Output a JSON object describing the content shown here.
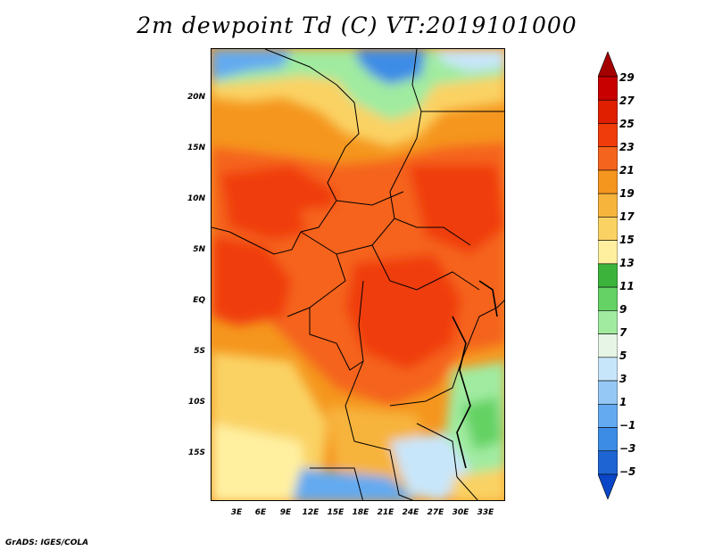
{
  "title": "2m dewpoint Td (C) VT:2019101000",
  "credit": "GrADS: IGES/COLA",
  "lat_labels": [
    "20N",
    "15N",
    "10N",
    "5N",
    "EQ",
    "5S",
    "10S",
    "15S"
  ],
  "lon_labels": [
    "3E",
    "6E",
    "9E",
    "12E",
    "15E",
    "18E",
    "21E",
    "24E",
    "27E",
    "30E",
    "33E"
  ],
  "colorbar": {
    "labels": [
      "29",
      "27",
      "25",
      "23",
      "21",
      "19",
      "17",
      "15",
      "13",
      "11",
      "9",
      "7",
      "5",
      "3",
      "1",
      "−1",
      "−3",
      "−5"
    ],
    "colors": [
      "#a50000",
      "#c80000",
      "#e01e00",
      "#f03c0a",
      "#f5641e",
      "#f5961e",
      "#f7b43c",
      "#fad264",
      "#fff0a0",
      "#3cb43c",
      "#64d264",
      "#a0eba0",
      "#e6f5e6",
      "#c8e6fa",
      "#96c8f5",
      "#64aaf0",
      "#3c8ce6",
      "#1e64d2",
      "#0a46c8"
    ]
  }
}
